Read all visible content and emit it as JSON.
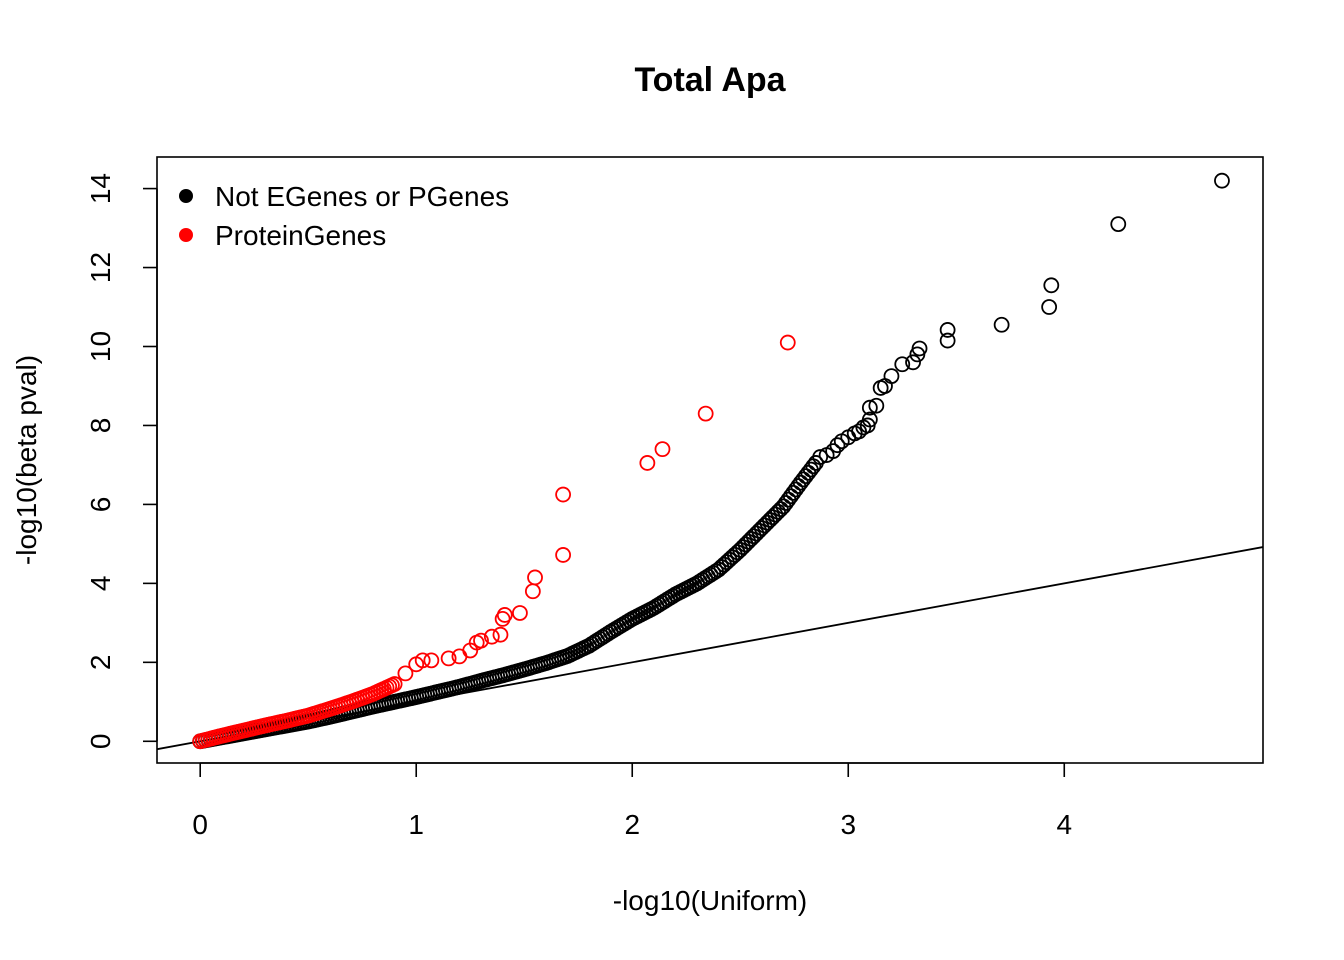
{
  "chart_data": {
    "type": "scatter",
    "title": "Total Apa",
    "xlabel": "-log10(Uniform)",
    "ylabel": "-log10(beta pval)",
    "xlim": [
      -0.2,
      4.92
    ],
    "ylim": [
      -0.55,
      14.8
    ],
    "x_ticks": [
      0,
      1,
      2,
      3,
      4
    ],
    "y_ticks": [
      0,
      2,
      4,
      6,
      8,
      10,
      12,
      14
    ],
    "grid": false,
    "legend_position": "top-left",
    "reference_line": {
      "intercept": 0,
      "slope": 1
    },
    "series": [
      {
        "name": "Not EGenes or PGenes",
        "color": "#000000",
        "marker": "open-circle",
        "dense_curve": [
          [
            0.0,
            0.0
          ],
          [
            0.1,
            0.1
          ],
          [
            0.2,
            0.2
          ],
          [
            0.3,
            0.3
          ],
          [
            0.4,
            0.4
          ],
          [
            0.5,
            0.5
          ],
          [
            0.6,
            0.62
          ],
          [
            0.7,
            0.75
          ],
          [
            0.8,
            0.88
          ],
          [
            0.9,
            1.0
          ],
          [
            1.0,
            1.12
          ],
          [
            1.1,
            1.25
          ],
          [
            1.2,
            1.38
          ],
          [
            1.3,
            1.53
          ],
          [
            1.4,
            1.67
          ],
          [
            1.5,
            1.82
          ],
          [
            1.6,
            1.98
          ],
          [
            1.7,
            2.16
          ],
          [
            1.8,
            2.42
          ],
          [
            1.9,
            2.77
          ],
          [
            2.0,
            3.1
          ],
          [
            2.1,
            3.38
          ],
          [
            2.2,
            3.72
          ],
          [
            2.3,
            4.0
          ],
          [
            2.4,
            4.35
          ],
          [
            2.5,
            4.85
          ],
          [
            2.6,
            5.4
          ],
          [
            2.7,
            5.95
          ],
          [
            2.78,
            6.55
          ],
          [
            2.85,
            7.05
          ]
        ],
        "points": [
          [
            2.87,
            7.2
          ],
          [
            2.9,
            7.25
          ],
          [
            2.93,
            7.35
          ],
          [
            2.95,
            7.5
          ],
          [
            2.97,
            7.6
          ],
          [
            3.0,
            7.7
          ],
          [
            3.03,
            7.8
          ],
          [
            3.05,
            7.85
          ],
          [
            3.07,
            7.95
          ],
          [
            3.09,
            8.0
          ],
          [
            3.1,
            8.15
          ],
          [
            3.1,
            8.45
          ],
          [
            3.13,
            8.5
          ],
          [
            3.15,
            8.95
          ],
          [
            3.17,
            9.0
          ],
          [
            3.2,
            9.25
          ],
          [
            3.25,
            9.55
          ],
          [
            3.3,
            9.6
          ],
          [
            3.32,
            9.8
          ],
          [
            3.33,
            9.95
          ],
          [
            3.46,
            10.15
          ],
          [
            3.46,
            10.42
          ],
          [
            3.71,
            10.55
          ],
          [
            3.93,
            11.0
          ],
          [
            3.94,
            11.55
          ],
          [
            4.25,
            13.1
          ],
          [
            4.73,
            14.2
          ]
        ]
      },
      {
        "name": "ProteinGenes",
        "color": "#ff0000",
        "marker": "open-circle",
        "dense_curve": [
          [
            0.0,
            0.0
          ],
          [
            0.1,
            0.14
          ],
          [
            0.2,
            0.27
          ],
          [
            0.3,
            0.4
          ],
          [
            0.4,
            0.52
          ],
          [
            0.5,
            0.65
          ],
          [
            0.6,
            0.82
          ],
          [
            0.7,
            1.0
          ],
          [
            0.8,
            1.2
          ],
          [
            0.9,
            1.45
          ]
        ],
        "points": [
          [
            0.95,
            1.72
          ],
          [
            1.0,
            1.95
          ],
          [
            1.03,
            2.05
          ],
          [
            1.07,
            2.05
          ],
          [
            1.15,
            2.1
          ],
          [
            1.2,
            2.15
          ],
          [
            1.25,
            2.3
          ],
          [
            1.28,
            2.5
          ],
          [
            1.3,
            2.55
          ],
          [
            1.35,
            2.65
          ],
          [
            1.39,
            2.7
          ],
          [
            1.4,
            3.1
          ],
          [
            1.41,
            3.2
          ],
          [
            1.48,
            3.25
          ],
          [
            1.54,
            3.8
          ],
          [
            1.55,
            4.15
          ],
          [
            1.68,
            4.72
          ],
          [
            1.68,
            6.25
          ],
          [
            2.07,
            7.05
          ],
          [
            2.14,
            7.4
          ],
          [
            2.34,
            8.3
          ],
          [
            2.72,
            10.1
          ]
        ]
      }
    ]
  }
}
